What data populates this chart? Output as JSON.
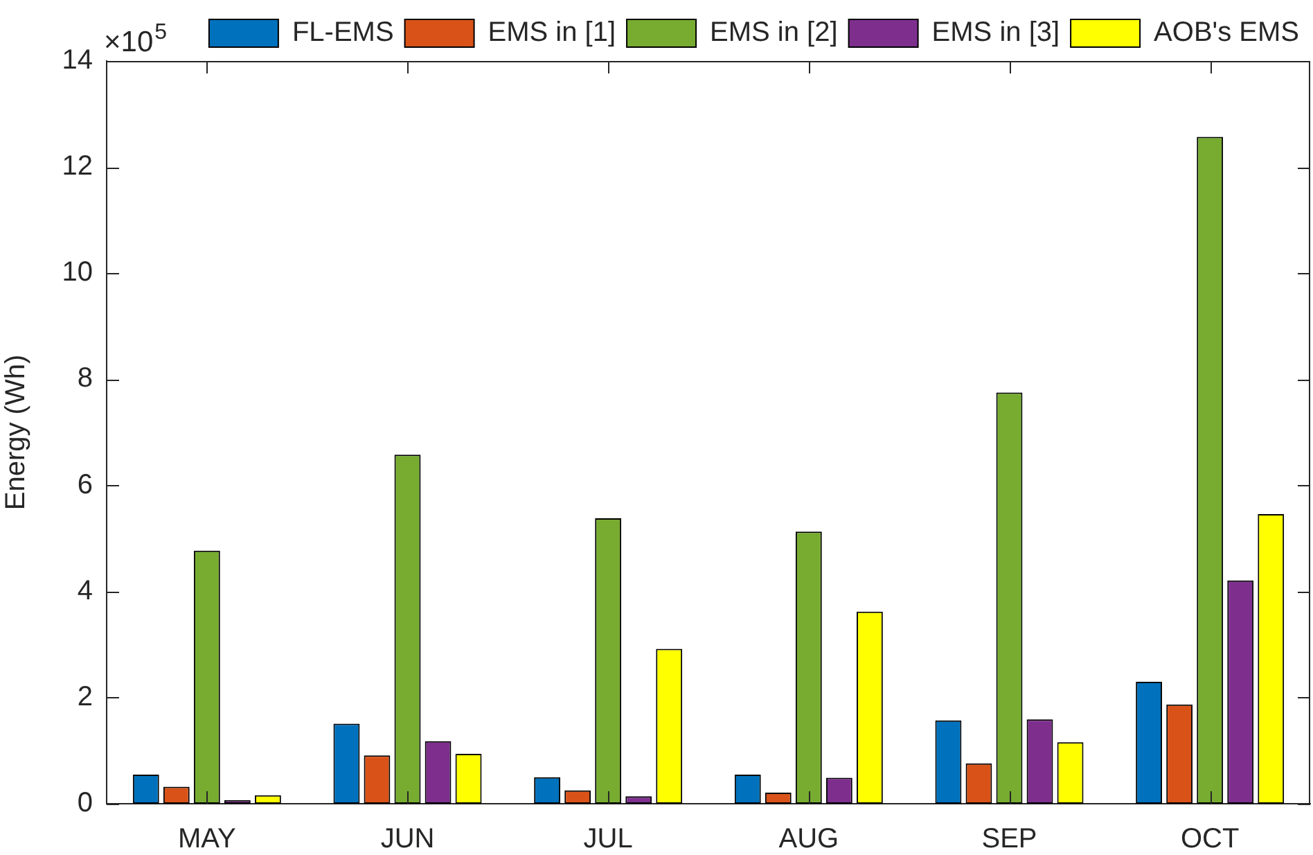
{
  "chart_data": {
    "type": "bar",
    "categories": [
      "MAY",
      "JUN",
      "JUL",
      "AUG",
      "SEP",
      "OCT"
    ],
    "series": [
      {
        "name": "FL-EMS",
        "color": "#0072bd",
        "values": [
          0.55,
          1.51,
          0.5,
          0.55,
          1.57,
          2.3
        ]
      },
      {
        "name": "EMS in [1]",
        "color": "#d95319",
        "values": [
          0.32,
          0.91,
          0.25,
          0.21,
          0.76,
          1.87
        ]
      },
      {
        "name": "EMS in [2]",
        "color": "#77ac30",
        "values": [
          4.77,
          6.58,
          5.38,
          5.13,
          7.75,
          12.57
        ]
      },
      {
        "name": "EMS in [3]",
        "color": "#7e2f8e",
        "values": [
          0.07,
          1.18,
          0.14,
          0.49,
          1.59,
          4.21
        ]
      },
      {
        "name": "AOB's EMS",
        "color": "#ffff00",
        "values": [
          0.16,
          0.94,
          2.92,
          3.62,
          1.16,
          5.46
        ]
      }
    ],
    "ylabel": "Energy (Wh)",
    "ylim": [
      0,
      14
    ],
    "yticks": [
      0,
      2,
      4,
      6,
      8,
      10,
      12,
      14
    ],
    "annotations": [
      "×10$^{5}$"
    ],
    "legend": "top right"
  }
}
